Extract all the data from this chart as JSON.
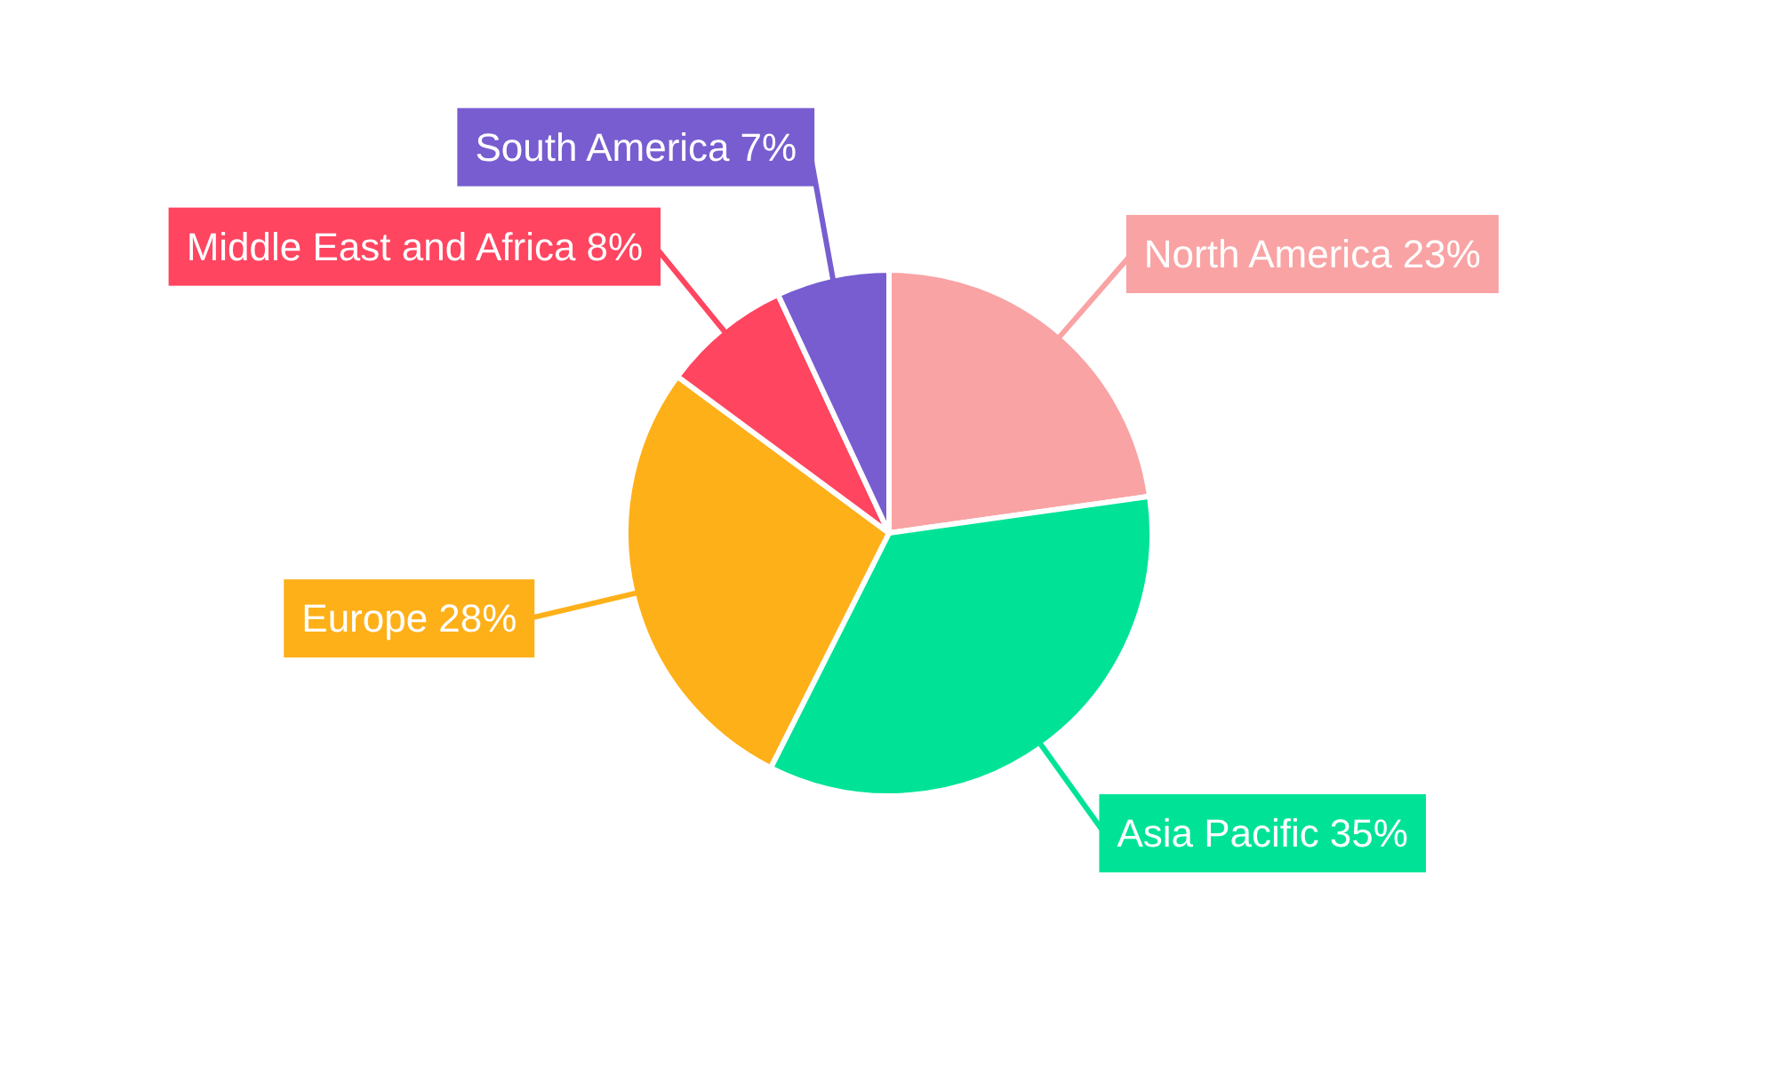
{
  "chart_data": {
    "type": "pie",
    "categories": [
      "North America",
      "Asia Pacific",
      "Europe",
      "Middle East and Africa",
      "South America"
    ],
    "values": [
      23,
      35,
      28,
      8,
      7
    ],
    "value_labels": [
      "23%",
      "35%",
      "28%",
      "8%",
      "7%"
    ],
    "colors": [
      "#f9a3a4",
      "#00e396",
      "#feb019",
      "#ff4560",
      "#775dd0"
    ]
  }
}
